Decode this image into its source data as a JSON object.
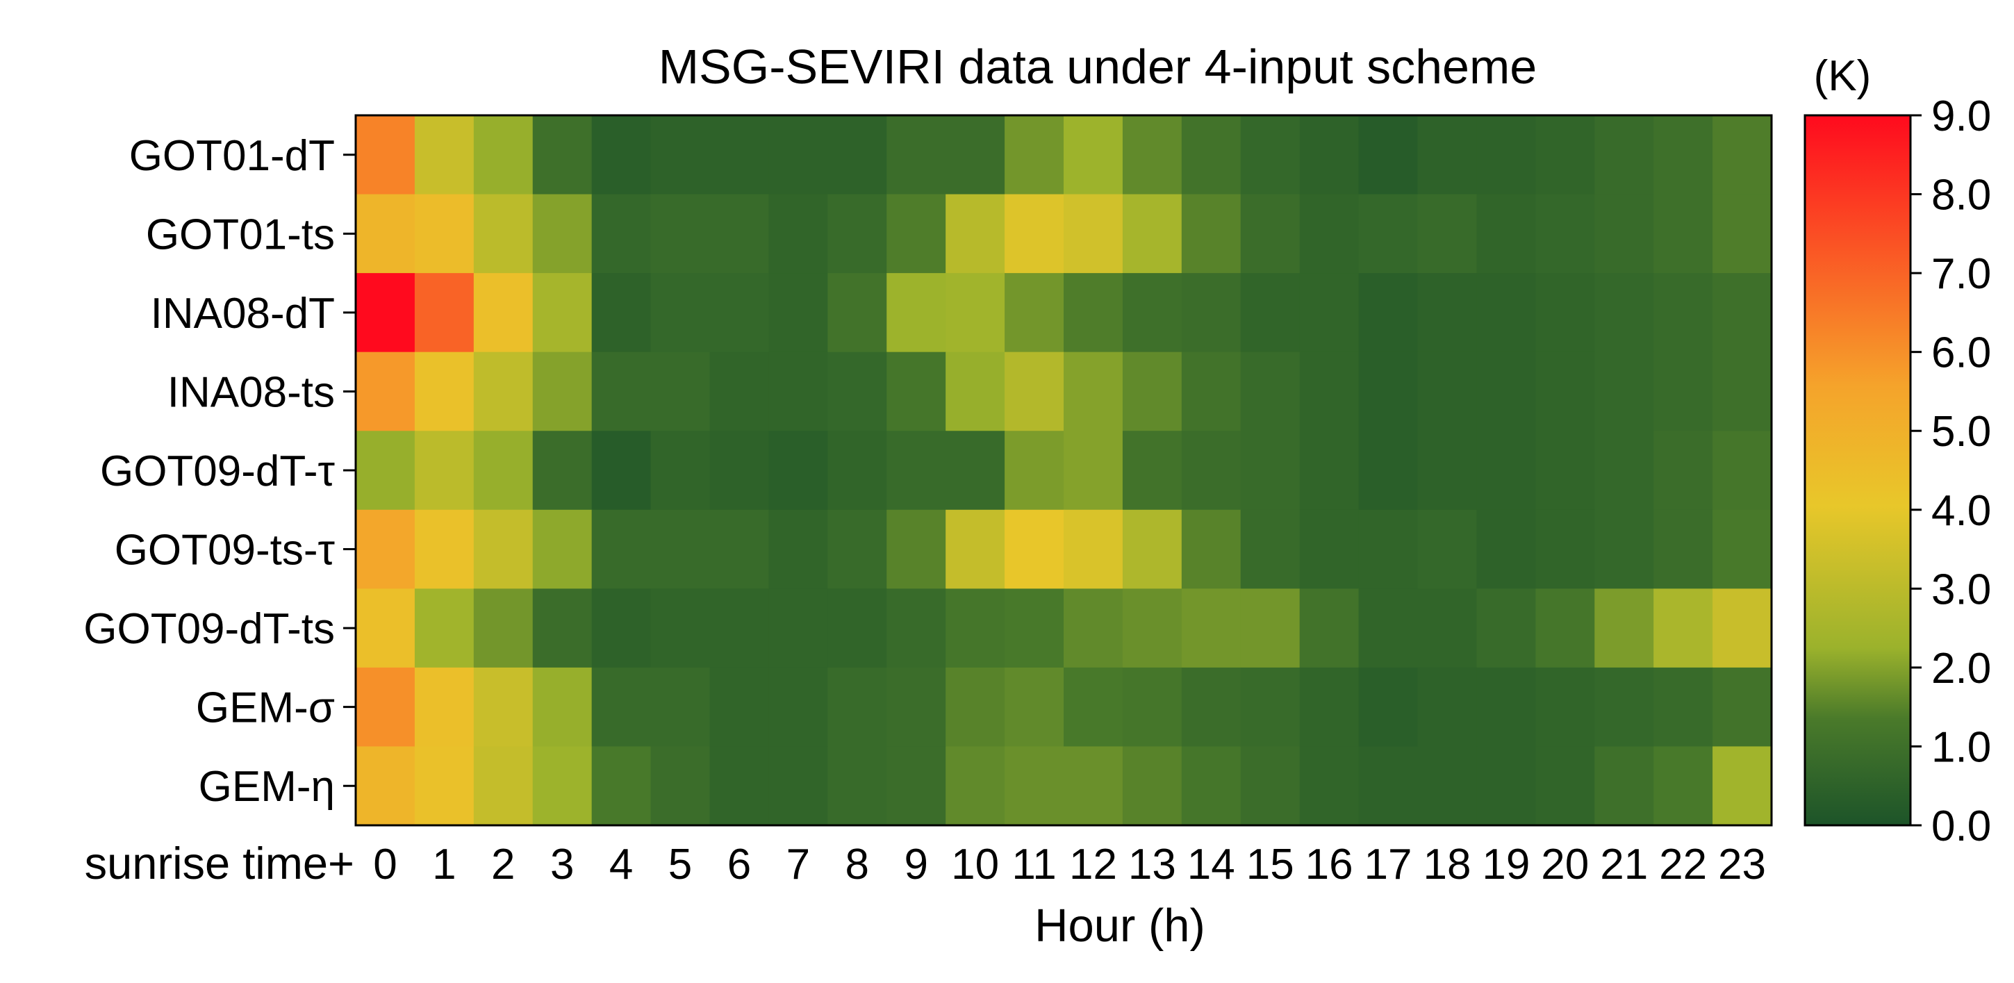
{
  "chart_data": {
    "type": "heatmap",
    "title": "MSG-SEVIRI data under 4-input scheme",
    "xlabel": "Hour (h)",
    "x_prefix": "sunrise time+",
    "ylabel": "",
    "colorbar_unit": "(K)",
    "x": [
      "0",
      "1",
      "2",
      "3",
      "4",
      "5",
      "6",
      "7",
      "8",
      "9",
      "10",
      "11",
      "12",
      "13",
      "14",
      "15",
      "16",
      "17",
      "18",
      "19",
      "20",
      "21",
      "22",
      "23"
    ],
    "y": [
      "GOT01-dT",
      "GOT01-ts",
      "INA08-dT",
      "INA08-ts",
      "GOT09-dT-τ",
      "GOT09-ts-τ",
      "GOT09-dT-ts",
      "GEM-σ",
      "GEM-η"
    ],
    "values": [
      [
        6.3,
        3.3,
        2.2,
        1.0,
        0.4,
        0.5,
        0.5,
        0.5,
        0.5,
        0.9,
        0.9,
        1.8,
        2.3,
        1.6,
        1.1,
        0.7,
        0.5,
        0.3,
        0.5,
        0.5,
        0.6,
        0.8,
        1.0,
        1.4
      ],
      [
        4.8,
        4.5,
        3.0,
        2.0,
        0.7,
        0.8,
        0.8,
        0.6,
        0.8,
        1.4,
        2.9,
        3.8,
        3.5,
        2.5,
        1.5,
        0.9,
        0.6,
        0.7,
        0.8,
        0.6,
        0.7,
        0.8,
        1.0,
        1.4
      ],
      [
        9.0,
        7.0,
        4.4,
        2.5,
        0.5,
        0.7,
        0.7,
        0.6,
        1.1,
        2.3,
        2.4,
        1.8,
        1.4,
        1.0,
        0.9,
        0.6,
        0.6,
        0.4,
        0.5,
        0.5,
        0.6,
        0.7,
        0.8,
        1.0
      ],
      [
        5.8,
        4.3,
        3.1,
        2.0,
        0.8,
        0.8,
        0.6,
        0.6,
        0.7,
        1.2,
        2.2,
        2.8,
        2.0,
        1.6,
        1.1,
        0.8,
        0.6,
        0.4,
        0.5,
        0.5,
        0.6,
        0.7,
        0.8,
        1.0
      ],
      [
        2.2,
        3.0,
        2.2,
        0.9,
        0.3,
        0.6,
        0.5,
        0.4,
        0.6,
        0.8,
        0.8,
        1.9,
        2.0,
        1.1,
        0.9,
        0.8,
        0.6,
        0.4,
        0.5,
        0.5,
        0.6,
        0.7,
        0.9,
        1.2
      ],
      [
        5.4,
        4.3,
        3.2,
        2.1,
        0.8,
        0.8,
        0.8,
        0.6,
        0.8,
        1.5,
        3.2,
        4.1,
        3.7,
        2.7,
        1.5,
        0.8,
        0.6,
        0.6,
        0.7,
        0.5,
        0.6,
        0.7,
        0.9,
        1.3
      ],
      [
        4.4,
        2.4,
        1.8,
        0.9,
        0.5,
        0.6,
        0.6,
        0.6,
        0.6,
        0.8,
        1.2,
        1.3,
        1.6,
        1.7,
        1.8,
        1.8,
        1.1,
        0.6,
        0.6,
        0.8,
        1.2,
        1.9,
        2.6,
        3.3
      ],
      [
        6.0,
        4.4,
        3.3,
        2.2,
        0.8,
        0.8,
        0.6,
        0.6,
        0.8,
        0.9,
        1.5,
        1.6,
        1.3,
        1.2,
        0.9,
        0.8,
        0.6,
        0.4,
        0.5,
        0.5,
        0.6,
        0.7,
        0.8,
        1.1
      ],
      [
        4.8,
        4.3,
        3.2,
        2.3,
        1.3,
        0.9,
        0.6,
        0.6,
        0.8,
        0.9,
        1.6,
        1.7,
        1.7,
        1.5,
        1.2,
        0.9,
        0.6,
        0.5,
        0.5,
        0.5,
        0.6,
        1.0,
        1.3,
        2.4
      ]
    ],
    "color_range": [
      0,
      9
    ],
    "colorbar_ticks": [
      "0.0",
      "1.0",
      "2.0",
      "3.0",
      "4.0",
      "5.0",
      "6.0",
      "7.0",
      "8.0",
      "9.0"
    ],
    "colors": {
      "stops": [
        "#1d5429",
        "#4a7a2a",
        "#9bb22c",
        "#e8c72a",
        "#f5a32b",
        "#ff0a1e"
      ],
      "stop_positions": [
        0.0,
        0.15,
        0.25,
        0.45,
        0.62,
        1.0
      ]
    },
    "grid": false
  }
}
